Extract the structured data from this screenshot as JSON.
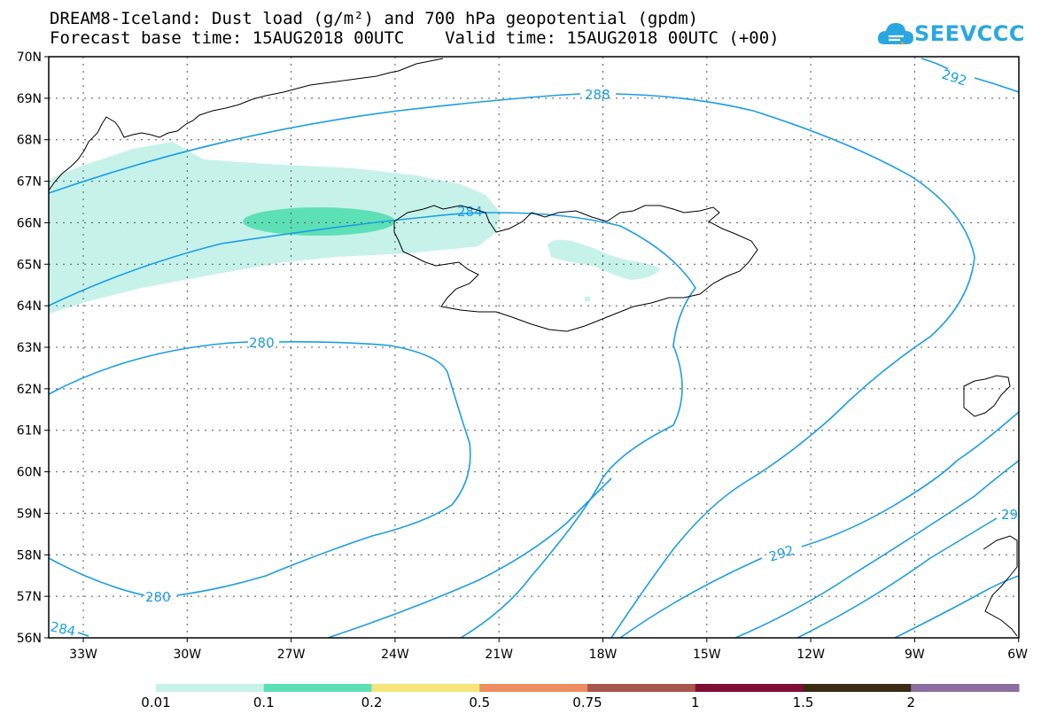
{
  "title_line1": "DREAM8-Iceland: Dust load (g/m²) and 700 hPa geopotential (gpdm)",
  "title_line2": "Forecast base time: 15AUG2018 00UTC    Valid time: 15AUG2018 00UTC (+00)",
  "logo_text": "SEEVCCC",
  "map": {
    "lat_labels": [
      "70N",
      "69N",
      "68N",
      "67N",
      "66N",
      "65N",
      "64N",
      "63N",
      "62N",
      "61N",
      "60N",
      "59N",
      "58N",
      "57N",
      "56N"
    ],
    "lon_labels": [
      "33W",
      "30W",
      "27W",
      "24W",
      "21W",
      "18W",
      "15W",
      "12W",
      "9W",
      "6W"
    ],
    "contour_labels": [
      "292",
      "288",
      "284",
      "280",
      "280",
      "284",
      "292",
      "29"
    ],
    "contour_color": "#1b9ee5",
    "coast_color": "#000000"
  },
  "colorbar": {
    "labels": [
      "0.01",
      "0.1",
      "0.2",
      "0.5",
      "0.75",
      "1",
      "1.5",
      "2"
    ],
    "colors": [
      "#c6f2ea",
      "#5ee0b6",
      "#f7e57a",
      "#ec8d62",
      "#a8574c",
      "#7f0f33",
      "#3b2a14",
      "#8c6fa0"
    ]
  }
}
